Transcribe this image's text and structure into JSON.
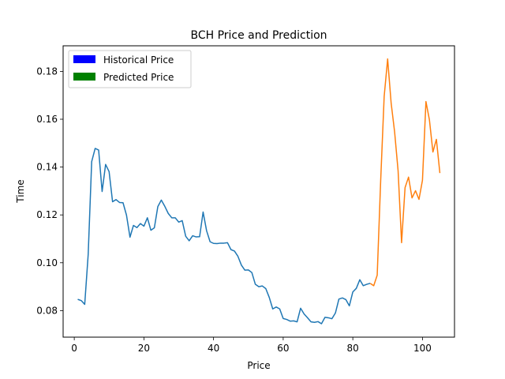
{
  "chart_data": {
    "type": "line",
    "title": "BCH Price and Prediction",
    "xlabel": "Price",
    "ylabel": "Time",
    "xlim": [
      -3.2,
      109.2
    ],
    "ylim": [
      0.0689,
      0.1907
    ],
    "xticks": [
      0,
      20,
      40,
      60,
      80,
      100
    ],
    "yticks": [
      0.08,
      0.1,
      0.12,
      0.14,
      0.16,
      0.18
    ],
    "ytick_labels": [
      "0.08",
      "0.10",
      "0.12",
      "0.14",
      "0.16",
      "0.18"
    ],
    "grid": false,
    "legend_position": "upper-left",
    "legend": [
      {
        "label": "Historical Price",
        "color": "#0000ff"
      },
      {
        "label": "Predicted Price",
        "color": "#008000"
      }
    ],
    "series": [
      {
        "color": "#1f77b4",
        "x": [
          1,
          2,
          3,
          4,
          5,
          6,
          7,
          8,
          9,
          10,
          11,
          12,
          13,
          14,
          15,
          16,
          17,
          18,
          19,
          20,
          21,
          22,
          23,
          24,
          25,
          26,
          27,
          28,
          29,
          30,
          31,
          32,
          33,
          34,
          35,
          36,
          37,
          38,
          39,
          40,
          41,
          42,
          43,
          44,
          45,
          46,
          47,
          48,
          49,
          50,
          51,
          52,
          53,
          54,
          55,
          56,
          57,
          58,
          59,
          60,
          61,
          62,
          63,
          64,
          65,
          66,
          67,
          68,
          69,
          70,
          71,
          72,
          73,
          74,
          75,
          76,
          77,
          78,
          79,
          80,
          81,
          82,
          83,
          84,
          85
        ],
        "y": [
          0.0847,
          0.0842,
          0.0826,
          0.1035,
          0.1423,
          0.1478,
          0.1471,
          0.1298,
          0.1411,
          0.1381,
          0.1255,
          0.1264,
          0.1252,
          0.1251,
          0.1199,
          0.1107,
          0.1156,
          0.1147,
          0.1164,
          0.1153,
          0.1188,
          0.1136,
          0.1146,
          0.1235,
          0.1262,
          0.1236,
          0.1206,
          0.1188,
          0.1188,
          0.117,
          0.1176,
          0.1111,
          0.1092,
          0.1113,
          0.1108,
          0.1109,
          0.1212,
          0.1134,
          0.1088,
          0.1081,
          0.108,
          0.1082,
          0.1082,
          0.1084,
          0.1055,
          0.1049,
          0.1027,
          0.099,
          0.0969,
          0.097,
          0.0959,
          0.091,
          0.09,
          0.0903,
          0.0892,
          0.0855,
          0.0807,
          0.0815,
          0.0807,
          0.0767,
          0.0763,
          0.0756,
          0.0757,
          0.0753,
          0.081,
          0.0786,
          0.077,
          0.0753,
          0.0751,
          0.0754,
          0.0745,
          0.0772,
          0.077,
          0.0766,
          0.079,
          0.0848,
          0.0853,
          0.0846,
          0.082,
          0.0878,
          0.0893,
          0.0929,
          0.0904,
          0.091,
          0.0914
        ]
      },
      {
        "color": "#ff7f0e",
        "x": [
          85,
          86,
          87,
          88,
          89,
          90,
          91,
          92,
          93,
          94,
          95,
          96,
          97,
          98,
          99,
          100,
          101,
          102,
          103,
          104,
          105
        ],
        "y": [
          0.0914,
          0.0904,
          0.0948,
          0.1344,
          0.1695,
          0.1852,
          0.1668,
          0.1547,
          0.1385,
          0.1084,
          0.1314,
          0.1358,
          0.1271,
          0.1301,
          0.1265,
          0.1345,
          0.1674,
          0.1597,
          0.1463,
          0.1516,
          0.1375
        ]
      }
    ]
  }
}
